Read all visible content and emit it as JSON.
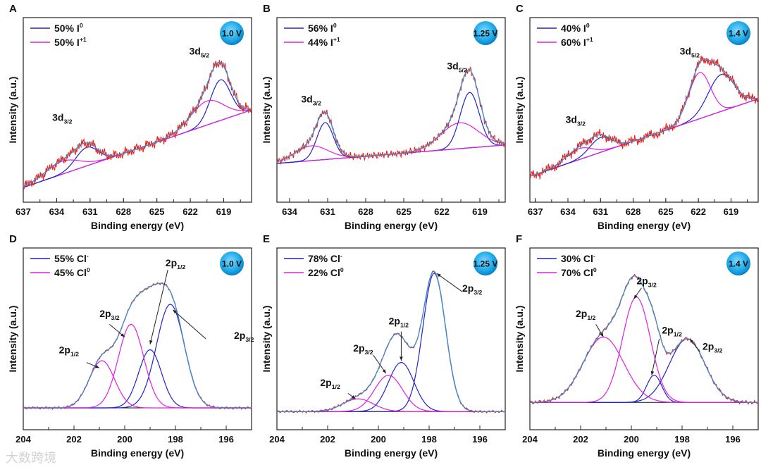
{
  "watermark": "大数跨境",
  "colors": {
    "experimental": "#e8231e",
    "envelope": "#3b8fd0",
    "comp1": "#2222cc",
    "comp2": "#e020e0",
    "baseline": "#111111",
    "badge": "#1aa7e6"
  },
  "chart_data": [
    {
      "panel": "A",
      "type": "line",
      "xlabel": "Binding energy (eV)",
      "ylabel": "Intensity (a.u.)",
      "xlim": [
        637,
        616.5
      ],
      "ylim": [
        0,
        1
      ],
      "xticks": [
        637,
        634,
        631,
        628,
        625,
        622,
        619
      ],
      "badge": "1.0 V",
      "noise": 0.018,
      "baseline": [
        0.08,
        0.5
      ],
      "legend": [
        {
          "text": "50% I",
          "sup": "0",
          "color": "comp1"
        },
        {
          "text": "50% I",
          "sup": "+1",
          "color": "comp2"
        }
      ],
      "components": [
        {
          "series": "comp1",
          "center": 619.3,
          "height": 0.22,
          "sigma": 0.9
        },
        {
          "series": "comp2",
          "center": 620.5,
          "height": 0.13,
          "sigma": 1.5
        },
        {
          "series": "comp1",
          "center": 631.3,
          "height": 0.1,
          "sigma": 1.0
        },
        {
          "series": "comp2",
          "center": 633.5,
          "height": 0.07,
          "sigma": 1.5
        }
      ],
      "labels": [
        {
          "text": "3d",
          "sub": "5/2",
          "x": 621.2,
          "y": 0.8
        },
        {
          "text": "3d",
          "sub": "3/2",
          "x": 633.5,
          "y": 0.44
        }
      ],
      "arrows": []
    },
    {
      "panel": "B",
      "type": "line",
      "xlabel": "Binding energy (eV)",
      "ylabel": "Intensity (a.u.)",
      "xlim": [
        635,
        617
      ],
      "ylim": [
        0,
        1
      ],
      "xticks": [
        634,
        631,
        628,
        625,
        622,
        619
      ],
      "badge": "1.25 V",
      "noise": 0.012,
      "baseline": [
        0.21,
        0.31
      ],
      "legend": [
        {
          "text": "56% I",
          "sup": "0",
          "color": "comp1"
        },
        {
          "text": "44% I",
          "sup": "+1",
          "color": "comp2"
        }
      ],
      "components": [
        {
          "series": "comp1",
          "center": 619.8,
          "height": 0.3,
          "sigma": 0.75
        },
        {
          "series": "comp2",
          "center": 620.6,
          "height": 0.14,
          "sigma": 1.5
        },
        {
          "series": "comp1",
          "center": 631.2,
          "height": 0.2,
          "sigma": 0.65
        },
        {
          "series": "comp2",
          "center": 632.3,
          "height": 0.08,
          "sigma": 1.3
        }
      ],
      "labels": [
        {
          "text": "3d",
          "sub": "5/2",
          "x": 620.8,
          "y": 0.72
        },
        {
          "text": "3d",
          "sub": "3/2",
          "x": 632.3,
          "y": 0.54
        }
      ],
      "arrows": []
    },
    {
      "panel": "C",
      "type": "line",
      "xlabel": "Binding energy (eV)",
      "ylabel": "Intensity (a.u.)",
      "xlim": [
        637.5,
        616.5
      ],
      "ylim": [
        0,
        1
      ],
      "xticks": [
        637,
        634,
        631,
        628,
        625,
        622,
        619
      ],
      "badge": "1.4 V",
      "noise": 0.018,
      "baseline": [
        0.14,
        0.56
      ],
      "legend": [
        {
          "text": "40% I",
          "sup": "0",
          "color": "comp1"
        },
        {
          "text": "60% I",
          "sup": "+1",
          "color": "comp2"
        }
      ],
      "components": [
        {
          "series": "comp1",
          "center": 619.9,
          "height": 0.2,
          "sigma": 1.2
        },
        {
          "series": "comp2",
          "center": 621.9,
          "height": 0.25,
          "sigma": 1.0
        },
        {
          "series": "comp1",
          "center": 631.0,
          "height": 0.08,
          "sigma": 1.0
        },
        {
          "series": "comp2",
          "center": 633.0,
          "height": 0.06,
          "sigma": 1.2
        }
      ],
      "labels": [
        {
          "text": "3d",
          "sub": "5/2",
          "x": 622.8,
          "y": 0.8
        },
        {
          "text": "3d",
          "sub": "3/2",
          "x": 633.3,
          "y": 0.43
        }
      ],
      "arrows": []
    },
    {
      "panel": "D",
      "type": "line",
      "xlabel": "Binding energy (eV)",
      "ylabel": "Intensity (a.u.)",
      "xlim": [
        204,
        195
      ],
      "ylim": [
        0,
        1
      ],
      "xticks": [
        204,
        202,
        200,
        198,
        196
      ],
      "badge": "1.0 V",
      "noise": 0.004,
      "baseline": [
        0.12,
        0.12
      ],
      "legend": [
        {
          "text": "55% Cl",
          "sup": "-",
          "color": "comp1"
        },
        {
          "text": "45% Cl",
          "sup": "0",
          "color": "comp2"
        }
      ],
      "components": [
        {
          "series": "comp1",
          "center": 198.2,
          "height": 0.57,
          "sigma": 0.55
        },
        {
          "series": "comp1",
          "center": 199.0,
          "height": 0.32,
          "sigma": 0.45
        },
        {
          "series": "comp2",
          "center": 199.75,
          "height": 0.46,
          "sigma": 0.5
        },
        {
          "series": "comp2",
          "center": 200.9,
          "height": 0.26,
          "sigma": 0.5
        }
      ],
      "labels": [
        {
          "text": "2p",
          "sub": "1/2",
          "x": 198.0,
          "y": 0.9
        },
        {
          "text": "2p",
          "sub": "3/2",
          "x": 200.6,
          "y": 0.62
        },
        {
          "text": "2p",
          "sub": "1/2",
          "x": 202.2,
          "y": 0.42
        },
        {
          "text": "2p",
          "sub": "3/2",
          "x": 195.3,
          "y": 0.5
        }
      ],
      "arrows": [
        [
          198.3,
          0.88,
          199.0,
          0.47
        ],
        [
          196.8,
          0.5,
          198.1,
          0.66
        ],
        [
          200.6,
          0.58,
          200.0,
          0.51
        ],
        [
          201.5,
          0.37,
          201.0,
          0.34
        ]
      ]
    },
    {
      "panel": "E",
      "type": "line",
      "xlabel": "Binding energy (eV)",
      "ylabel": "Intensity (a.u.)",
      "xlim": [
        204,
        195
      ],
      "ylim": [
        0,
        1
      ],
      "xticks": [
        204,
        202,
        200,
        198,
        196
      ],
      "badge": "1.25 V",
      "noise": 0.004,
      "baseline": [
        0.1,
        0.1
      ],
      "legend": [
        {
          "text": "78% Cl",
          "sup": "-",
          "color": "comp1"
        },
        {
          "text": "22% Cl",
          "sup": "0",
          "color": "comp2"
        }
      ],
      "components": [
        {
          "series": "comp1",
          "center": 197.8,
          "height": 0.76,
          "sigma": 0.45
        },
        {
          "series": "comp1",
          "center": 199.1,
          "height": 0.27,
          "sigma": 0.5
        },
        {
          "series": "comp2",
          "center": 199.6,
          "height": 0.2,
          "sigma": 0.55
        },
        {
          "series": "comp2",
          "center": 200.8,
          "height": 0.07,
          "sigma": 0.6
        }
      ],
      "labels": [
        {
          "text": "2p",
          "sub": "3/2",
          "x": 196.3,
          "y": 0.76
        },
        {
          "text": "2p",
          "sub": "1/2",
          "x": 199.2,
          "y": 0.58
        },
        {
          "text": "2p",
          "sub": "3/2",
          "x": 200.6,
          "y": 0.43
        },
        {
          "text": "2p",
          "sub": "1/2",
          "x": 201.9,
          "y": 0.24
        }
      ],
      "arrows": [
        [
          196.7,
          0.76,
          197.7,
          0.86
        ],
        [
          199.1,
          0.54,
          199.1,
          0.38
        ],
        [
          200.2,
          0.41,
          199.7,
          0.31
        ],
        [
          201.2,
          0.2,
          200.9,
          0.17
        ]
      ]
    },
    {
      "panel": "F",
      "type": "line",
      "xlabel": "Binding energy (eV)",
      "ylabel": "Intensity (a.u.)",
      "xlim": [
        204,
        195
      ],
      "ylim": [
        0,
        1
      ],
      "xticks": [
        204,
        202,
        200,
        198,
        196
      ],
      "badge": "1.4 V",
      "noise": 0.006,
      "baseline": [
        0.15,
        0.15
      ],
      "legend": [
        {
          "text": "30% Cl",
          "sup": "-",
          "color": "comp1"
        },
        {
          "text": "70% Cl",
          "sup": "0",
          "color": "comp2"
        }
      ],
      "components": [
        {
          "series": "comp1",
          "center": 197.8,
          "height": 0.35,
          "sigma": 0.7
        },
        {
          "series": "comp1",
          "center": 199.1,
          "height": 0.15,
          "sigma": 0.3
        },
        {
          "series": "comp2",
          "center": 199.8,
          "height": 0.58,
          "sigma": 0.55
        },
        {
          "series": "comp2",
          "center": 201.1,
          "height": 0.36,
          "sigma": 0.8
        }
      ],
      "labels": [
        {
          "text": "2p",
          "sub": "3/2",
          "x": 199.4,
          "y": 0.8
        },
        {
          "text": "2p",
          "sub": "1/2",
          "x": 201.8,
          "y": 0.62
        },
        {
          "text": "2p",
          "sub": "1/2",
          "x": 198.4,
          "y": 0.53
        },
        {
          "text": "2p",
          "sub": "3/2",
          "x": 196.8,
          "y": 0.44
        }
      ],
      "arrows": [
        [
          199.6,
          0.78,
          199.9,
          0.72
        ],
        [
          201.4,
          0.58,
          201.1,
          0.51
        ],
        [
          198.9,
          0.5,
          199.2,
          0.3
        ],
        [
          197.3,
          0.43,
          197.7,
          0.5
        ]
      ]
    }
  ]
}
